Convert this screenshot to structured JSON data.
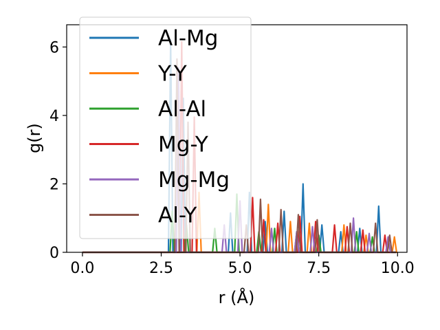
{
  "chart_data": {
    "type": "line",
    "title": "",
    "xlabel": "r (Å)",
    "ylabel": "g(r)",
    "xlim": [
      -0.5,
      10.3
    ],
    "ylim": [
      0,
      6.65
    ],
    "xticks": [
      "0.0",
      "2.5",
      "5.0",
      "7.5",
      "10.0"
    ],
    "xtick_values": [
      0,
      2.5,
      5,
      7.5,
      10
    ],
    "yticks": [
      "0",
      "2",
      "4",
      "6"
    ],
    "ytick_values": [
      0,
      2,
      4,
      6
    ],
    "grid": false,
    "legend_position": "top-left",
    "series": [
      {
        "name": "Al-Mg",
        "color": "#1f77b4",
        "peaks": [
          [
            2.8,
            6.2
          ],
          [
            3.2,
            4.5
          ],
          [
            4.7,
            1.15
          ],
          [
            5.3,
            1.75
          ],
          [
            5.8,
            0.9
          ],
          [
            6.4,
            1.2
          ],
          [
            7.0,
            2.0
          ],
          [
            7.6,
            0.8
          ],
          [
            8.2,
            0.6
          ],
          [
            8.8,
            0.7
          ],
          [
            9.4,
            1.35
          ]
        ]
      },
      {
        "name": "Y-Y",
        "color": "#ff7f0e",
        "peaks": [
          [
            3.7,
            1.75
          ],
          [
            5.9,
            1.4
          ],
          [
            6.6,
            0.9
          ],
          [
            7.2,
            0.85
          ],
          [
            8.3,
            0.8
          ],
          [
            9.0,
            0.5
          ],
          [
            9.9,
            0.45
          ]
        ]
      },
      {
        "name": "Al-Al",
        "color": "#2ca02c",
        "peaks": [
          [
            2.85,
            1.2
          ],
          [
            3.3,
            0.8
          ],
          [
            4.2,
            0.7
          ],
          [
            4.9,
            1.7
          ],
          [
            5.6,
            0.6
          ],
          [
            6.1,
            0.7
          ],
          [
            6.8,
            0.6
          ],
          [
            7.5,
            0.5
          ],
          [
            8.7,
            0.6
          ],
          [
            9.2,
            0.45
          ]
        ]
      },
      {
        "name": "Mg-Y",
        "color": "#d62728",
        "peaks": [
          [
            3.15,
            6.15
          ],
          [
            3.55,
            3.95
          ],
          [
            5.4,
            1.6
          ],
          [
            5.75,
            0.95
          ],
          [
            6.2,
            0.85
          ],
          [
            6.9,
            1.05
          ],
          [
            7.4,
            0.9
          ],
          [
            8.0,
            0.8
          ],
          [
            8.4,
            0.75
          ],
          [
            8.9,
            0.65
          ],
          [
            9.6,
            0.5
          ]
        ]
      },
      {
        "name": "Mg-Mg",
        "color": "#9467bd",
        "peaks": [
          [
            3.05,
            5.4
          ],
          [
            4.5,
            0.8
          ],
          [
            5.0,
            1.5
          ],
          [
            6.0,
            0.7
          ],
          [
            6.8,
            0.6
          ],
          [
            7.3,
            0.75
          ],
          [
            8.6,
            1.0
          ],
          [
            9.1,
            0.55
          ],
          [
            9.7,
            0.45
          ]
        ]
      },
      {
        "name": "Al-Y",
        "color": "#8c564b",
        "peaks": [
          [
            3.0,
            5.65
          ],
          [
            3.35,
            3.8
          ],
          [
            5.2,
            0.8
          ],
          [
            5.65,
            1.55
          ],
          [
            6.3,
            1.25
          ],
          [
            6.85,
            1.1
          ],
          [
            7.45,
            0.95
          ],
          [
            8.5,
            0.85
          ],
          [
            9.3,
            0.85
          ],
          [
            9.75,
            0.5
          ]
        ]
      }
    ]
  }
}
